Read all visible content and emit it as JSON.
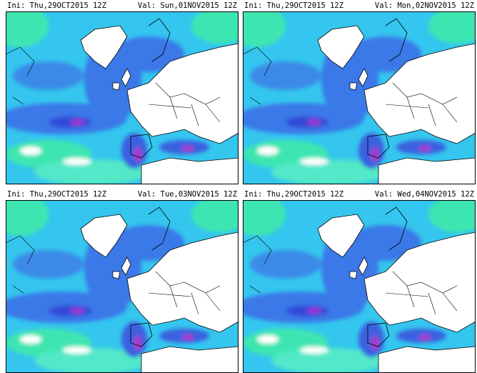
{
  "panels": [
    {
      "ini": "Ini: Thu,29OCT2015 12Z",
      "val": "Val: Sun,01NOV2015 12Z"
    },
    {
      "ini": "Ini: Thu,29OCT2015 12Z",
      "val": "Val: Mon,02NOV2015 12Z"
    },
    {
      "ini": "Ini: Thu,29OCT2015 12Z",
      "val": "Val: Tue,03NOV2015 12Z"
    },
    {
      "ini": "Ini: Thu,29OCT2015 12Z",
      "val": "Val: Wed,04NOV2015 12Z"
    }
  ]
}
